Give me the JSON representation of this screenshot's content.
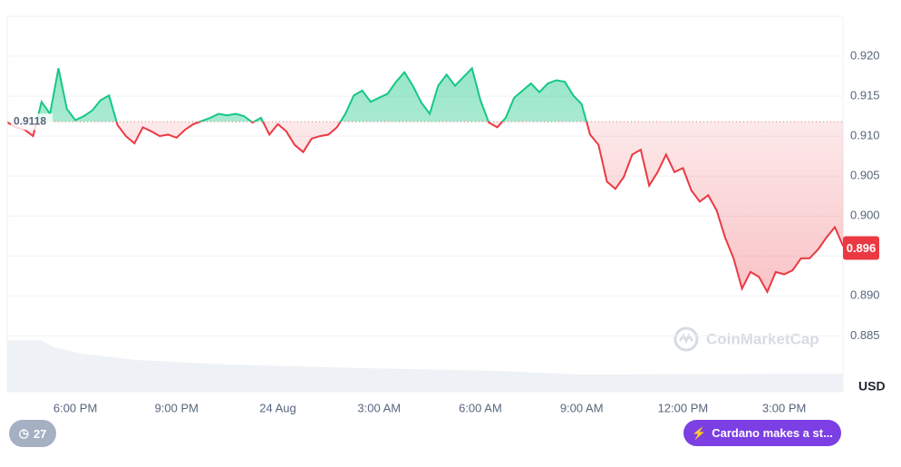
{
  "chart_data": {
    "type": "line",
    "categories": [
      null,
      null,
      null,
      null,
      null,
      null,
      null,
      null,
      "6:00 PM",
      null,
      null,
      null,
      null,
      null,
      null,
      null,
      null,
      null,
      null,
      null,
      "9:00 PM",
      null,
      null,
      null,
      null,
      null,
      null,
      null,
      null,
      null,
      null,
      null,
      "24 Aug",
      null,
      null,
      null,
      null,
      null,
      null,
      null,
      null,
      null,
      null,
      null,
      "3:00 AM",
      null,
      null,
      null,
      null,
      null,
      null,
      null,
      null,
      null,
      null,
      null,
      "6:00 AM",
      null,
      null,
      null,
      null,
      null,
      null,
      null,
      null,
      null,
      null,
      null,
      "9:00 AM",
      null,
      null,
      null,
      null,
      null,
      null,
      null,
      null,
      null,
      null,
      null,
      "12:00 PM",
      null,
      null,
      null,
      null,
      null,
      null,
      null,
      null,
      null,
      null,
      null,
      "3:00 PM",
      null,
      null,
      null,
      null,
      null,
      null,
      null
    ],
    "values": [
      0.9117,
      0.9111,
      0.9108,
      0.91,
      0.9143,
      0.9128,
      0.9185,
      0.9134,
      0.912,
      0.9125,
      0.9132,
      0.9145,
      0.9151,
      0.9114,
      0.91,
      0.9091,
      0.9111,
      0.9106,
      0.91,
      0.9102,
      0.9098,
      0.9108,
      0.9115,
      0.9119,
      0.9123,
      0.9128,
      0.9126,
      0.9128,
      0.9125,
      0.9117,
      0.9123,
      0.9102,
      0.9115,
      0.9106,
      0.9089,
      0.908,
      0.9097,
      0.91,
      0.9102,
      0.9111,
      0.9128,
      0.9151,
      0.9157,
      0.9143,
      0.9148,
      0.9153,
      0.9168,
      0.918,
      0.9163,
      0.9142,
      0.9128,
      0.9163,
      0.9177,
      0.9163,
      0.9174,
      0.9185,
      0.9145,
      0.9117,
      0.9111,
      0.9123,
      0.9148,
      0.9157,
      0.9166,
      0.9155,
      0.9166,
      0.917,
      0.9168,
      0.9151,
      0.914,
      0.9102,
      0.9089,
      0.9043,
      0.9034,
      0.9049,
      0.9077,
      0.9083,
      0.9038,
      0.9055,
      0.9077,
      0.9055,
      0.906,
      0.9032,
      0.9018,
      0.9026,
      0.9007,
      0.8973,
      0.8947,
      0.8909,
      0.893,
      0.8924,
      0.8905,
      0.893,
      0.8927,
      0.8932,
      0.8947,
      0.8947,
      0.8958,
      0.8973,
      0.8986,
      0.8962
    ],
    "up_color": "#16c784",
    "down_color": "#ea3943",
    "baseline": 0.9118,
    "current_price": 0.896,
    "y_axis_label": "USD",
    "watermark": "CoinMarketCap",
    "ylim": [
      0.878,
      0.925
    ],
    "yticks": [
      {
        "value": 0.92,
        "label": "0.920"
      },
      0.915,
      {
        "value": 0.91,
        "label": "0.910"
      },
      0.905,
      {
        "value": 0.9,
        "label": "0.900"
      },
      0.895,
      {
        "value": 0.89,
        "label": "0.890"
      },
      0.885
    ],
    "grid": true
  },
  "ui": {
    "notes_count": 27,
    "news_button": "Cardano makes a st..."
  }
}
